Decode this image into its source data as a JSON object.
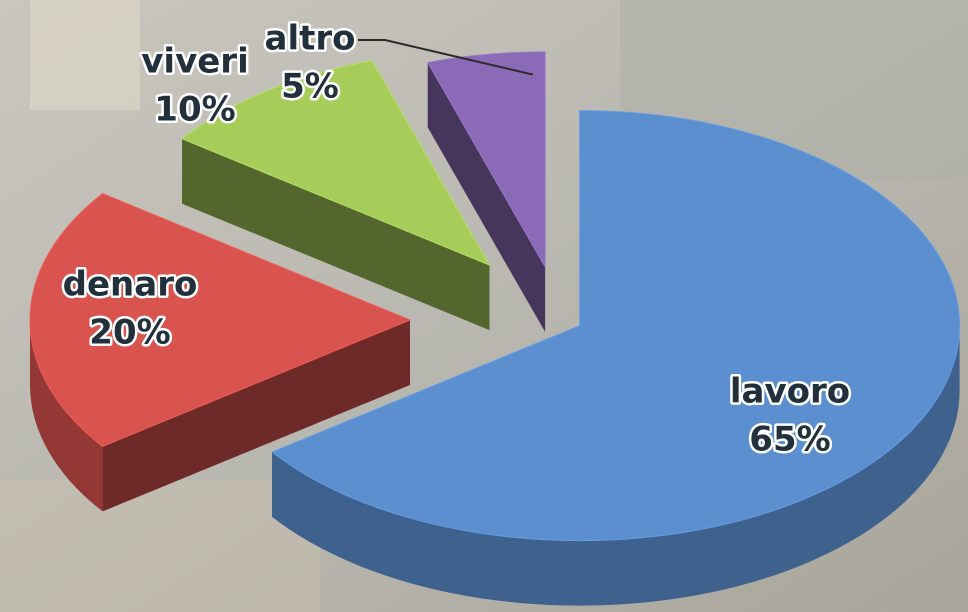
{
  "chart_data": {
    "type": "pie",
    "categories": [
      "lavoro",
      "denaro",
      "viveri",
      "altro"
    ],
    "values": [
      65,
      20,
      10,
      5
    ],
    "value_labels": [
      "65%",
      "20%",
      "10%",
      "5%"
    ],
    "colors": [
      "#5b8fd0",
      "#d9534f",
      "#a6cc5a",
      "#8b6bb8"
    ]
  }
}
